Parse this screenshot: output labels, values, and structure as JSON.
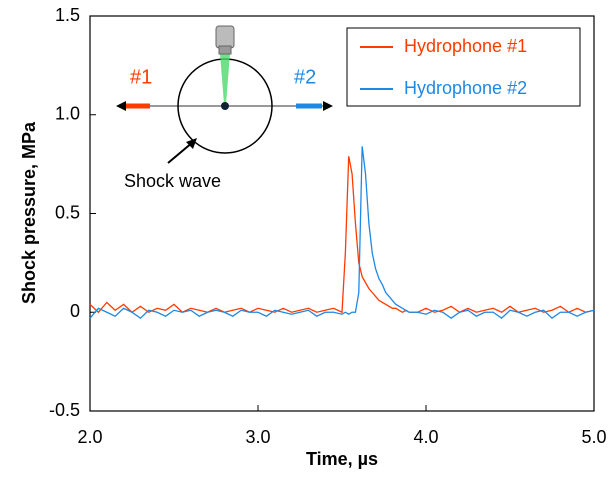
{
  "chart_data": {
    "type": "line",
    "x_label": "Time, µs",
    "y_label": "Shock pressure, MPa",
    "x": [
      2.0,
      2.05,
      2.1,
      2.15,
      2.2,
      2.25,
      2.3,
      2.35,
      2.4,
      2.45,
      2.5,
      2.55,
      2.6,
      2.65,
      2.7,
      2.75,
      2.8,
      2.85,
      2.9,
      2.95,
      3.0,
      3.05,
      3.1,
      3.15,
      3.2,
      3.25,
      3.3,
      3.35,
      3.4,
      3.45,
      3.5,
      3.52,
      3.54,
      3.56,
      3.58,
      3.6,
      3.62,
      3.64,
      3.66,
      3.68,
      3.7,
      3.72,
      3.74,
      3.76,
      3.78,
      3.8,
      3.82,
      3.84,
      3.86,
      3.88,
      3.9,
      3.95,
      4.0,
      4.05,
      4.1,
      4.15,
      4.2,
      4.25,
      4.3,
      4.35,
      4.4,
      4.45,
      4.5,
      4.55,
      4.6,
      4.65,
      4.7,
      4.75,
      4.8,
      4.85,
      4.9,
      4.95,
      5.0
    ],
    "series": [
      {
        "name": "Hydrophone #1",
        "color": "#ff3b00",
        "values": [
          0.04,
          0.0,
          0.05,
          0.01,
          0.04,
          0.0,
          0.03,
          0.0,
          0.02,
          0.01,
          0.04,
          0.0,
          0.02,
          0.01,
          0.0,
          0.02,
          0.0,
          0.01,
          0.02,
          0.0,
          0.02,
          0.01,
          0.0,
          0.02,
          0.0,
          0.01,
          0.02,
          0.0,
          0.01,
          0.02,
          0.0,
          0.3,
          0.79,
          0.7,
          0.45,
          0.25,
          0.18,
          0.15,
          0.12,
          0.1,
          0.08,
          0.06,
          0.05,
          0.04,
          0.03,
          0.02,
          0.02,
          0.01,
          0.0,
          0.01,
          0.0,
          0.0,
          0.02,
          0.0,
          0.01,
          0.03,
          0.0,
          0.02,
          0.0,
          0.01,
          0.02,
          0.0,
          0.03,
          0.0,
          0.01,
          0.02,
          0.0,
          0.01,
          0.03,
          0.0,
          0.02,
          0.0,
          0.01
        ]
      },
      {
        "name": "Hydrophone #2",
        "color": "#1e88e5",
        "values": [
          -0.03,
          0.02,
          0.0,
          -0.02,
          0.02,
          0.0,
          -0.03,
          0.01,
          0.0,
          -0.02,
          0.01,
          0.0,
          0.01,
          -0.02,
          0.0,
          0.01,
          0.0,
          -0.02,
          0.01,
          0.0,
          0.0,
          -0.02,
          0.01,
          0.0,
          -0.01,
          0.0,
          0.01,
          -0.02,
          0.0,
          0.0,
          -0.01,
          0.0,
          -0.01,
          0.0,
          0.0,
          0.1,
          0.84,
          0.7,
          0.45,
          0.3,
          0.22,
          0.17,
          0.14,
          0.1,
          0.08,
          0.06,
          0.04,
          0.03,
          0.02,
          0.01,
          0.0,
          0.0,
          -0.01,
          0.01,
          0.0,
          -0.03,
          0.0,
          0.01,
          -0.02,
          0.0,
          0.0,
          -0.03,
          0.01,
          0.0,
          -0.02,
          0.0,
          0.01,
          -0.03,
          0.0,
          0.0,
          -0.02,
          0.0,
          0.01
        ]
      }
    ],
    "xlim": [
      2.0,
      5.0
    ],
    "xticks": [
      {
        "value": 2.0,
        "label": "2.0"
      },
      {
        "value": 3.0,
        "label": "3.0"
      },
      {
        "value": 4.0,
        "label": "4.0"
      },
      {
        "value": 5.0,
        "label": "5.0"
      }
    ],
    "ylim": [
      -0.5,
      1.5
    ],
    "yticks": [
      -0.5,
      0,
      0.5,
      {
        "value": 1.0,
        "label": "1.0"
      },
      1.5
    ],
    "legend": "upper right",
    "annotations": [
      "#1",
      "#2",
      "Shock wave"
    ]
  }
}
